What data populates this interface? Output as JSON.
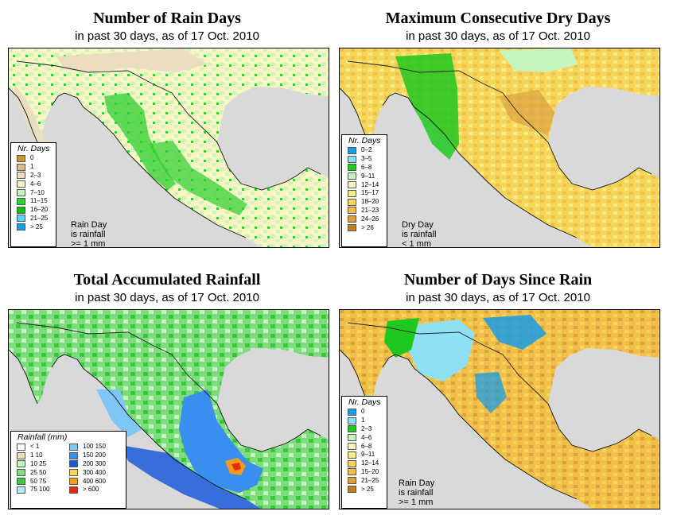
{
  "panels": [
    {
      "title": "Number of Rain Days",
      "subtitle": "in past 30 days, as of  17 Oct. 2010",
      "legend_title": "Nr. Days",
      "legend": [
        {
          "label": "0",
          "color": "#c8962a"
        },
        {
          "label": "1",
          "color": "#d9bd92"
        },
        {
          "label": "2–3",
          "color": "#ecdcc0"
        },
        {
          "label": "4–6",
          "color": "#f7f6c2"
        },
        {
          "label": "7–10",
          "color": "#c8f5c2"
        },
        {
          "label": "11–15",
          "color": "#2fcf2f"
        },
        {
          "label": "16–20",
          "color": "#0fc00f"
        },
        {
          "label": "21–25",
          "color": "#5ad4f5"
        },
        {
          "label": "> 25",
          "color": "#1a9ce6"
        }
      ],
      "note": [
        "Rain Day",
        "is rainfall",
        ">= 1 mm"
      ]
    },
    {
      "title": "Maximum Consecutive Dry Days",
      "subtitle": "in past 30 days, as of  17 Oct. 2010",
      "legend_title": "Nr. Days",
      "legend": [
        {
          "label": "0–2",
          "color": "#1a9ce6"
        },
        {
          "label": "3–5",
          "color": "#8fe0f5"
        },
        {
          "label": "6–8",
          "color": "#1ec81e"
        },
        {
          "label": "9–11",
          "color": "#c4f5bd"
        },
        {
          "label": "12–14",
          "color": "#f7f6c2"
        },
        {
          "label": "15–17",
          "color": "#f7ec8c"
        },
        {
          "label": "18–20",
          "color": "#f5d65a"
        },
        {
          "label": "21–23",
          "color": "#f0c048"
        },
        {
          "label": "24–26",
          "color": "#dda040"
        },
        {
          "label": "> 26",
          "color": "#c08020"
        }
      ],
      "note": [
        "Dry Day",
        "is rainfall",
        "< 1 mm"
      ]
    },
    {
      "title": "Total Accumulated Rainfall",
      "subtitle": "in past 30 days, as of  17 Oct. 2010",
      "legend_title": "Rainfall (mm)",
      "legend_left": [
        {
          "label": "< 1",
          "color": "#ffffff"
        },
        {
          "label": "1   10",
          "color": "#ecdcc0"
        },
        {
          "label": "10   25",
          "color": "#c4f5bd"
        },
        {
          "label": "25   50",
          "color": "#7edc7e"
        },
        {
          "label": "50   75",
          "color": "#3cc63c"
        },
        {
          "label": "75  100",
          "color": "#b6ecf5"
        }
      ],
      "legend_right": [
        {
          "label": "100  150",
          "color": "#7ec6f5"
        },
        {
          "label": "150  200",
          "color": "#3a8ef0"
        },
        {
          "label": "200  300",
          "color": "#1a5ad9"
        },
        {
          "label": "300  400",
          "color": "#f5d65a"
        },
        {
          "label": "400  600",
          "color": "#f59a1a"
        },
        {
          "label": "> 600",
          "color": "#e62a10"
        }
      ]
    },
    {
      "title": "Number of Days Since Rain",
      "subtitle": "in past 30 days, as of  17 Oct. 2010",
      "legend_title": "Nr. Days",
      "legend": [
        {
          "label": "0",
          "color": "#1a9ce6"
        },
        {
          "label": "1",
          "color": "#8fe0f5"
        },
        {
          "label": "2–3",
          "color": "#1ec81e"
        },
        {
          "label": "4–6",
          "color": "#c4f5bd"
        },
        {
          "label": "6–8",
          "color": "#f7f6c2"
        },
        {
          "label": "9–11",
          "color": "#f7ec8c"
        },
        {
          "label": "12–14",
          "color": "#f5d65a"
        },
        {
          "label": "15–20",
          "color": "#f0c048"
        },
        {
          "label": "21–25",
          "color": "#dda040"
        },
        {
          "label": "> 25",
          "color": "#c08020"
        }
      ],
      "note": [
        "Rain Day",
        "is rainfall",
        ">= 1 mm"
      ]
    }
  ]
}
